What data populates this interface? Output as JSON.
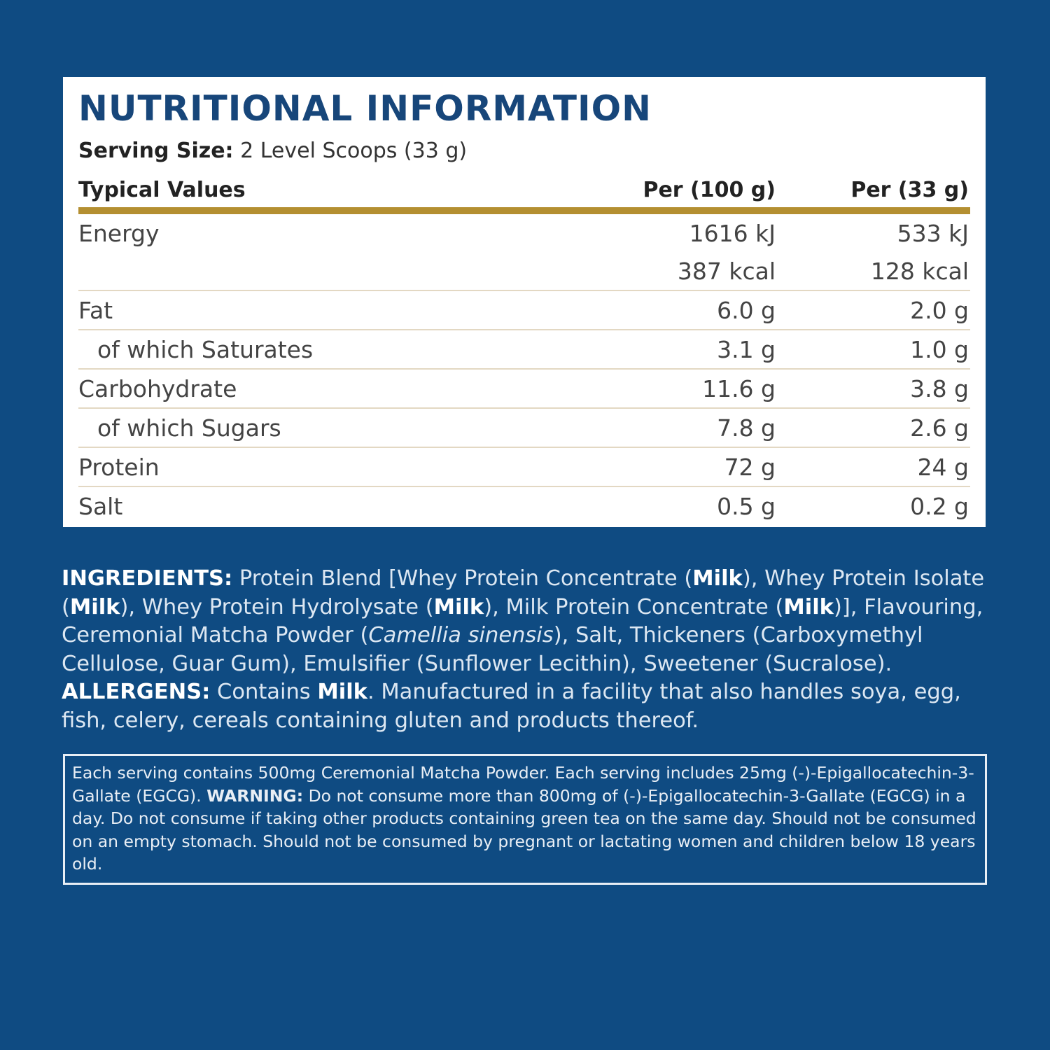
{
  "title": "NUTRITIONAL INFORMATION",
  "serving": {
    "label": "Serving Size:",
    "value": "2 Level Scoops (33 g)"
  },
  "table": {
    "header": [
      "Typical Values",
      "Per (100 g)",
      "Per (33 g)"
    ],
    "energy": {
      "label": "Energy",
      "per100": [
        "1616 kJ",
        "387 kcal"
      ],
      "perServing": [
        "533 kJ",
        "128 kcal"
      ]
    },
    "rows": [
      [
        "Fat",
        "6.0 g",
        "2.0 g"
      ],
      [
        "of which Saturates",
        "3.1 g",
        "1.0 g"
      ],
      [
        "Carbohydrate",
        "11.6 g",
        "3.8 g"
      ],
      [
        "of which Sugars",
        "7.8 g",
        "2.6 g"
      ],
      [
        "Protein",
        "72 g",
        "24 g"
      ],
      [
        "Salt",
        "0.5 g",
        "0.2 g"
      ]
    ]
  },
  "ingredients": [
    "INGREDIENTS:",
    " Protein Blend [Whey Protein Concentrate (",
    "Milk",
    "), Whey Protein Isolate (",
    "Milk",
    "), Whey Protein Hydrolysate (",
    "Milk",
    "), Milk Protein Concentrate (",
    "Milk",
    ")], Flavouring, Ceremonial Matcha Powder (",
    "Camellia sinensis",
    "), Salt, Thickeners (Carboxymethyl Cellulose, Guar Gum), Emulsifier (Sunflower Lecithin), Sweetener (Sucralose). ",
    "ALLERGENS:",
    " Contains ",
    "Milk",
    ". Manufactured in a facility that also handles soya, egg, fish, celery, cereals containing gluten and products thereof."
  ],
  "warning": [
    "Each serving contains 500mg Ceremonial Matcha Powder. Each serving includes 25mg (-)-Epigallocatechin-3-Gallate (EGCG). ",
    "WARNING:",
    " Do not consume more than 800mg of (-)-Epigallocatechin-3-Gallate (EGCG) in a day. Do not consume if taking other products containing green tea on the same day. Should not be consumed on an empty stomach. Should not be consumed by pregnant or lactating women and children below 18 years old."
  ]
}
